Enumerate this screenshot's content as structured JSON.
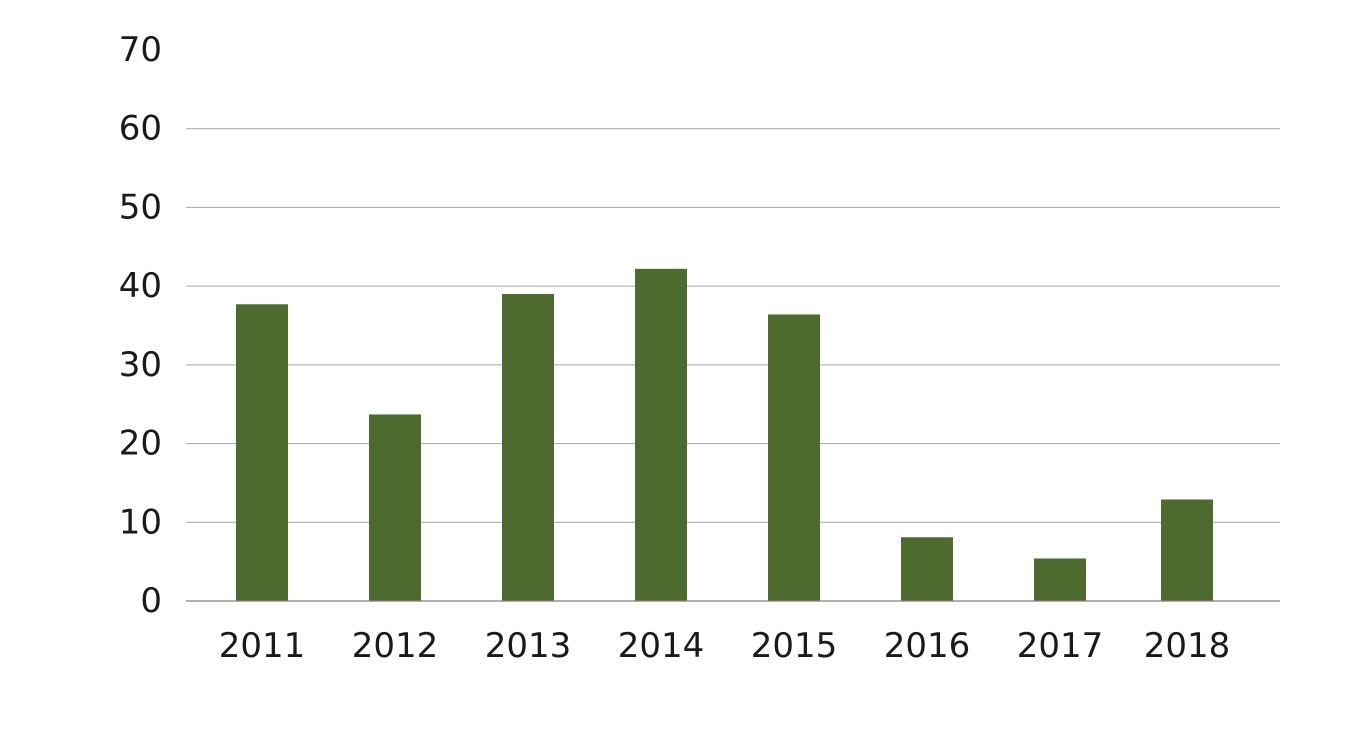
{
  "chart_data": {
    "type": "bar",
    "title": "",
    "xlabel": "",
    "ylabel": "",
    "categories": [
      "2011",
      "2012",
      "2013",
      "2014",
      "2015",
      "2016",
      "2017",
      "2018"
    ],
    "values": [
      37.7,
      23.7,
      39.0,
      42.2,
      36.4,
      8.1,
      5.4,
      12.9
    ],
    "ylim": [
      0,
      70
    ],
    "yticks": [
      0,
      10,
      20,
      30,
      40,
      50,
      60,
      70
    ],
    "grid": true,
    "legend": "none",
    "bar_color": "#4e6b2f"
  }
}
